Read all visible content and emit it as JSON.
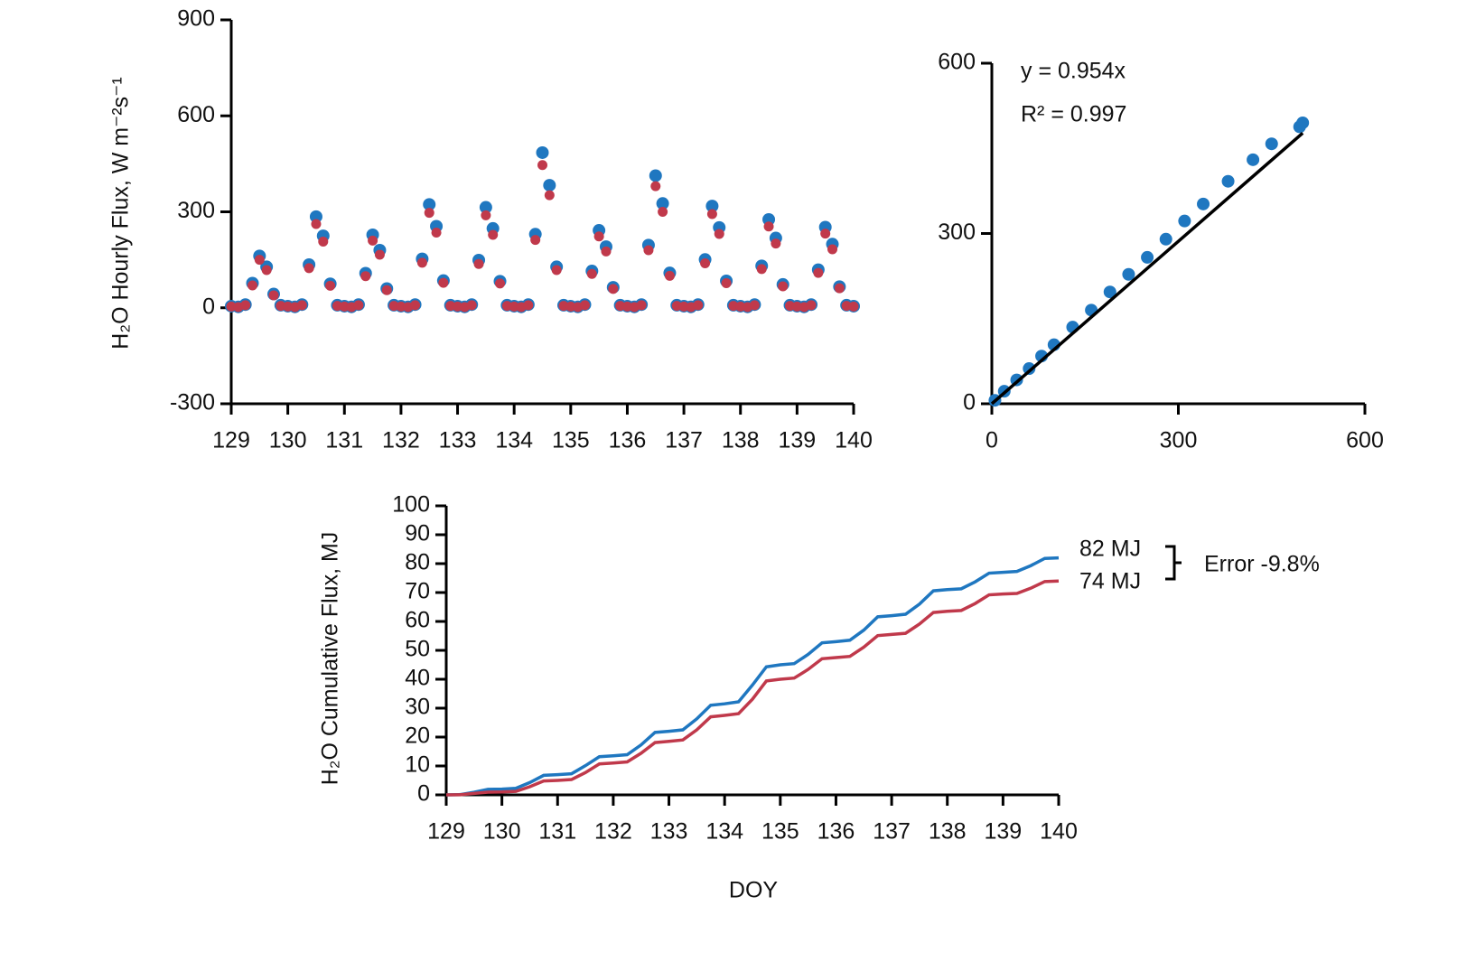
{
  "chart_data": [
    {
      "type": "scatter",
      "ylabel": "H₂O Hourly Flux, W m⁻²s⁻¹",
      "xlim": [
        129,
        140
      ],
      "xticks": [
        129,
        130,
        131,
        132,
        133,
        134,
        135,
        136,
        137,
        138,
        139,
        140
      ],
      "ylim": [
        -300,
        900
      ],
      "yticks": [
        -300,
        0,
        300,
        600,
        900
      ],
      "x": [
        129,
        129.125,
        129.25,
        129.375,
        129.5,
        129.625,
        129.75,
        129.875,
        130,
        130.125,
        130.25,
        130.375,
        130.5,
        130.625,
        130.75,
        130.875,
        131,
        131.125,
        131.25,
        131.375,
        131.5,
        131.625,
        131.75,
        131.875,
        132,
        132.125,
        132.25,
        132.375,
        132.5,
        132.625,
        132.75,
        132.875,
        133,
        133.125,
        133.25,
        133.375,
        133.5,
        133.625,
        133.75,
        133.875,
        134,
        134.125,
        134.25,
        134.375,
        134.5,
        134.625,
        134.75,
        134.875,
        135,
        135.125,
        135.25,
        135.375,
        135.5,
        135.625,
        135.75,
        135.875,
        136,
        136.125,
        136.25,
        136.375,
        136.5,
        136.625,
        136.75,
        136.875,
        137,
        137.125,
        137.25,
        137.375,
        137.5,
        137.625,
        137.75,
        137.875,
        138,
        138.125,
        138.25,
        138.375,
        138.5,
        138.625,
        138.75,
        138.875,
        139,
        139.125,
        139.25,
        139.375,
        139.5,
        139.625,
        139.75,
        139.875,
        140
      ],
      "series": [
        {
          "color": "#1f77c0",
          "values": [
            5,
            3,
            10,
            77,
            162,
            128,
            43,
            8,
            5,
            3,
            10,
            135,
            285,
            225,
            75,
            8,
            5,
            3,
            10,
            108,
            228,
            180,
            60,
            8,
            5,
            3,
            10,
            153,
            323,
            255,
            85,
            8,
            5,
            3,
            10,
            149,
            314,
            248,
            83,
            8,
            5,
            3,
            10,
            230,
            485,
            383,
            128,
            8,
            5,
            3,
            10,
            115,
            242,
            191,
            64,
            8,
            5,
            3,
            10,
            196,
            413,
            326,
            109,
            8,
            5,
            3,
            10,
            151,
            318,
            251,
            84,
            8,
            5,
            3,
            10,
            131,
            276,
            218,
            73,
            8,
            5,
            3,
            10,
            119,
            252,
            199,
            66,
            8,
            5
          ]
        },
        {
          "color": "#c0394b",
          "values": [
            4,
            2,
            8,
            70,
            150,
            118,
            39,
            6,
            4,
            2,
            8,
            124,
            262,
            207,
            69,
            6,
            4,
            2,
            8,
            99,
            210,
            166,
            55,
            6,
            4,
            2,
            8,
            141,
            297,
            235,
            78,
            6,
            4,
            2,
            8,
            137,
            289,
            228,
            76,
            6,
            4,
            2,
            8,
            212,
            446,
            352,
            118,
            6,
            4,
            2,
            8,
            106,
            223,
            176,
            59,
            6,
            4,
            2,
            8,
            180,
            380,
            300,
            100,
            6,
            4,
            2,
            8,
            139,
            293,
            231,
            77,
            6,
            4,
            2,
            8,
            121,
            254,
            201,
            67,
            6,
            4,
            2,
            8,
            109,
            232,
            183,
            61,
            6,
            4
          ]
        }
      ]
    },
    {
      "type": "scatter",
      "xlim": [
        0,
        600
      ],
      "xticks": [
        0,
        300,
        600
      ],
      "ylim": [
        0,
        600
      ],
      "yticks": [
        0,
        300,
        600
      ],
      "annotations": [
        "y = 0.954x",
        "R² = 0.997"
      ],
      "x": [
        5,
        20,
        40,
        60,
        80,
        100,
        130,
        160,
        190,
        220,
        250,
        280,
        310,
        340,
        380,
        420,
        450,
        495,
        500
      ],
      "series": [
        {
          "color": "#1f77c0",
          "values": [
            6,
            22,
            42,
            62,
            84,
            104,
            135,
            165,
            197,
            228,
            258,
            290,
            322,
            352,
            392,
            430,
            458,
            488,
            495
          ]
        }
      ],
      "fit": {
        "color": "#000000",
        "x": [
          0,
          500
        ],
        "y": [
          0,
          477
        ]
      }
    },
    {
      "type": "line",
      "ylabel": "H₂O Cumulative Flux, MJ",
      "xlabel": "DOY",
      "xlim": [
        129,
        140
      ],
      "xticks": [
        129,
        130,
        131,
        132,
        133,
        134,
        135,
        136,
        137,
        138,
        139,
        140
      ],
      "ylim": [
        0,
        100
      ],
      "yticks": [
        0,
        10,
        20,
        30,
        40,
        50,
        60,
        70,
        80,
        90,
        100
      ],
      "annotations": [
        "82 MJ",
        "74 MJ",
        "Error -9.8%"
      ],
      "x": [
        129,
        129.25,
        129.5,
        129.75,
        130,
        130.25,
        130.5,
        130.75,
        131,
        131.25,
        131.5,
        131.75,
        132,
        132.25,
        132.5,
        132.75,
        133,
        133.25,
        133.5,
        133.75,
        134,
        134.25,
        134.5,
        134.75,
        135,
        135.25,
        135.5,
        135.75,
        136,
        136.25,
        136.5,
        136.75,
        137,
        137.25,
        137.5,
        137.75,
        138,
        138.25,
        138.5,
        138.75,
        139,
        139.25,
        139.5,
        139.75,
        140
      ],
      "series": [
        {
          "color": "#1f77c0",
          "values": [
            0,
            0.1,
            0.9,
            1.9,
            2,
            2.25,
            4.25,
            6.75,
            7,
            7.3,
            10.1,
            13.2,
            13.5,
            13.9,
            17.3,
            21.6,
            22,
            22.5,
            26.3,
            31,
            31.5,
            32.2,
            38,
            44.3,
            45,
            45.4,
            48.6,
            52.6,
            53,
            53.5,
            57,
            61.6,
            62,
            62.5,
            66,
            70.6,
            71,
            71.3,
            73.7,
            76.7,
            77,
            77.3,
            79.3,
            81.8,
            82
          ]
        },
        {
          "color": "#c0394b",
          "values": [
            0,
            0.05,
            0.5,
            0.95,
            1,
            1.2,
            2.8,
            4.8,
            5,
            5.3,
            7.7,
            10.7,
            11,
            11.4,
            14.4,
            18.1,
            18.5,
            19,
            22.5,
            27,
            27.5,
            28.1,
            33.1,
            39.4,
            40,
            40.4,
            43.4,
            47.1,
            47.5,
            47.9,
            51.1,
            55.1,
            55.5,
            55.9,
            59.1,
            63.1,
            63.5,
            63.8,
            66.2,
            69.2,
            69.5,
            69.7,
            71.5,
            73.8,
            74
          ]
        }
      ]
    }
  ]
}
